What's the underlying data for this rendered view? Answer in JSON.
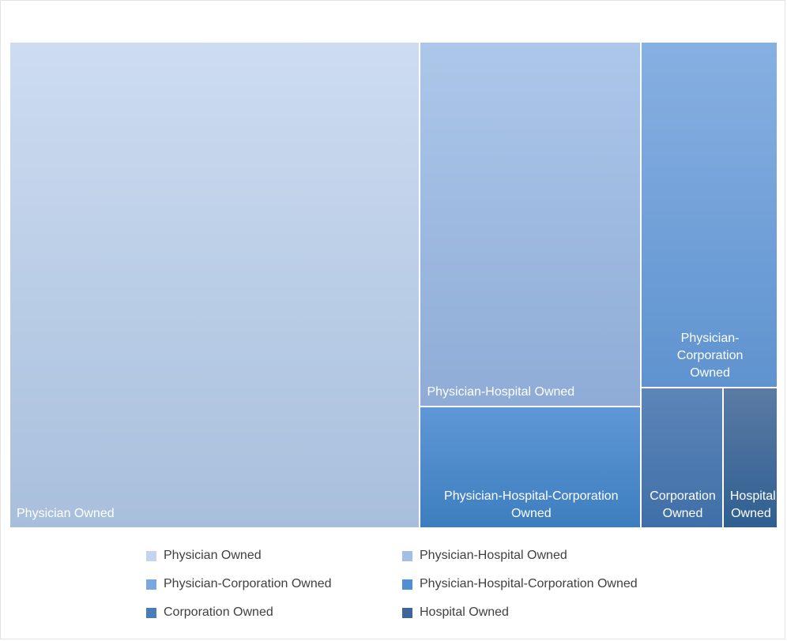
{
  "chart_data": {
    "type": "treemap",
    "title": "",
    "items": [
      {
        "label": "Physician Owned",
        "value": 52,
        "color_top": "#cddcf1",
        "color_bottom": "#a8bfdc"
      },
      {
        "label": "Physician-Hospital Owned",
        "value": 21,
        "color_top": "#adc7ea",
        "color_bottom": "#8eacd6"
      },
      {
        "label": "Physician-Corporation Owned",
        "value": 12.3,
        "color_top": "#87b0e2",
        "color_bottom": "#5f93cf"
      },
      {
        "label": "Physician-Hospital-Corporation Owned",
        "value": 7,
        "color_top": "#5f97d6",
        "color_bottom": "#3d7ebf"
      },
      {
        "label": "Corporation Owned",
        "value": 3,
        "color_top": "#5d86b9",
        "color_bottom": "#3f6fa8"
      },
      {
        "label": "Hospital Owned",
        "value": 2,
        "color_top": "#5b7ba4",
        "color_bottom": "#2f5f92"
      }
    ],
    "legend": {
      "position": "bottom",
      "entries": [
        {
          "label": "Physician Owned",
          "color": "#c3d4ee"
        },
        {
          "label": "Physician-Hospital Owned",
          "color": "#a3bfe6"
        },
        {
          "label": "Physician-Corporation Owned",
          "color": "#79a7df"
        },
        {
          "label": "Physician-Hospital-Corporation Owned",
          "color": "#528ed4"
        },
        {
          "label": "Corporation Owned",
          "color": "#4a7cb8"
        },
        {
          "label": "Hospital Owned",
          "color": "#3f6698"
        }
      ]
    }
  }
}
